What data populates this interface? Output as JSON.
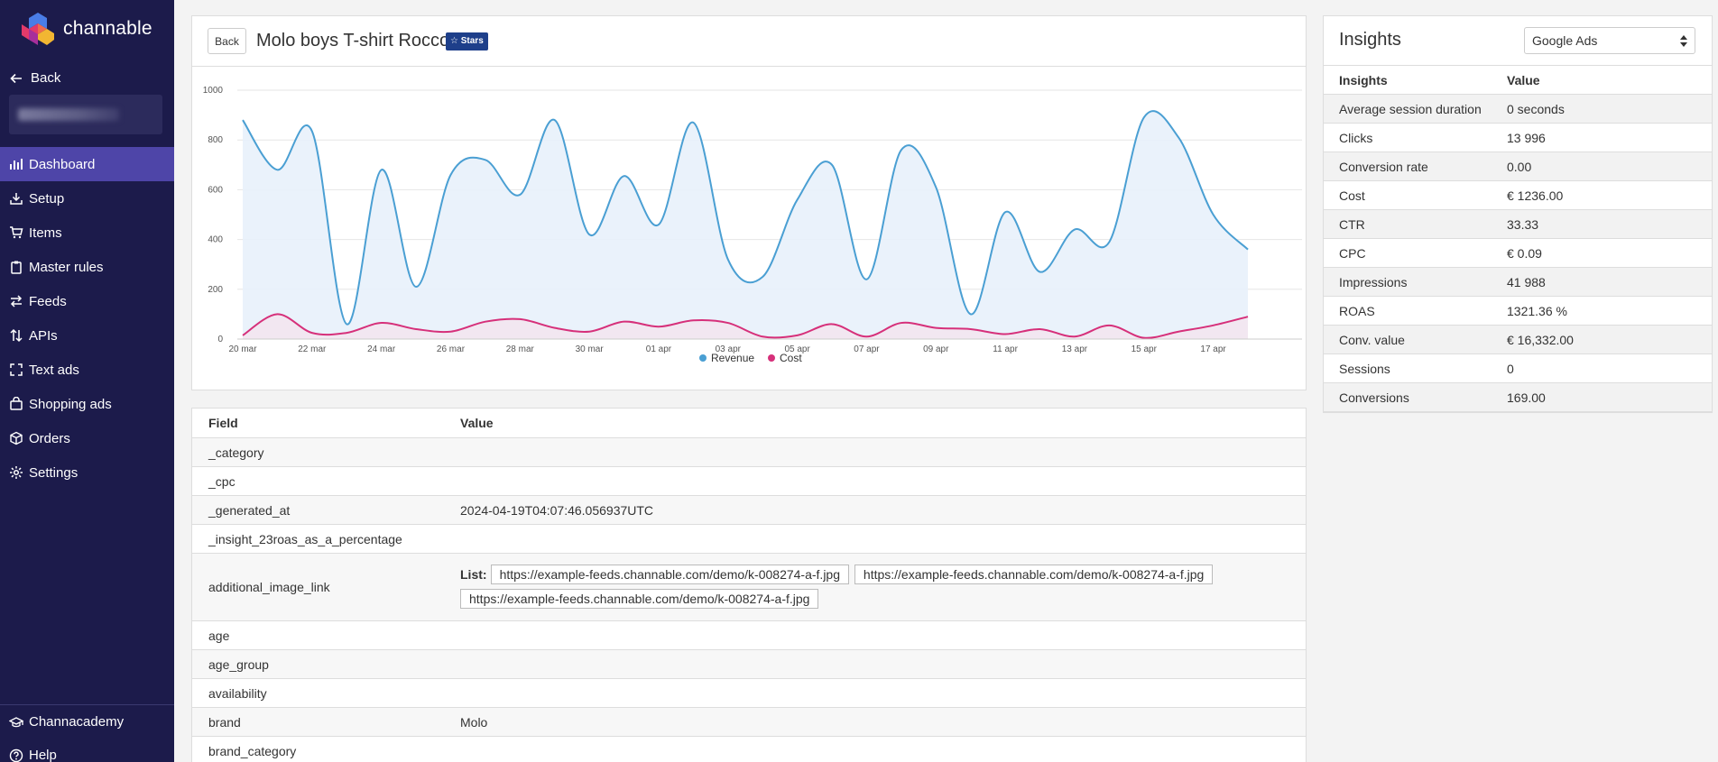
{
  "app": {
    "brand": "channable"
  },
  "sidebar": {
    "back_label": "Back",
    "items": [
      {
        "label": "Dashboard",
        "icon": "bar-chart-icon",
        "active": true
      },
      {
        "label": "Setup",
        "icon": "download-icon"
      },
      {
        "label": "Items",
        "icon": "cart-icon"
      },
      {
        "label": "Master rules",
        "icon": "clipboard-icon"
      },
      {
        "label": "Feeds",
        "icon": "exchange-icon"
      },
      {
        "label": "APIs",
        "icon": "sort-icon"
      },
      {
        "label": "Text ads",
        "icon": "expand-icon"
      },
      {
        "label": "Shopping ads",
        "icon": "shopping-bag-icon"
      },
      {
        "label": "Orders",
        "icon": "box-icon"
      },
      {
        "label": "Settings",
        "icon": "gear-icon"
      }
    ],
    "bottom": [
      {
        "label": "Channacademy",
        "icon": "graduation-cap-icon"
      },
      {
        "label": "Help",
        "icon": "question-icon"
      }
    ]
  },
  "item": {
    "back_button": "Back",
    "title": "Molo boys T-shirt Rocco",
    "badge": "☆ Stars"
  },
  "chart_data": {
    "type": "line",
    "title": "",
    "xlabel": "",
    "ylabel": "",
    "ylim": [
      0,
      1000
    ],
    "yticks": [
      0,
      200,
      400,
      600,
      800,
      1000
    ],
    "x": [
      "20 mar",
      "21 mar",
      "22 mar",
      "23 mar",
      "24 mar",
      "25 mar",
      "26 mar",
      "27 mar",
      "28 mar",
      "29 mar",
      "30 mar",
      "31 mar",
      "01 apr",
      "02 apr",
      "03 apr",
      "04 apr",
      "05 apr",
      "06 apr",
      "07 apr",
      "08 apr",
      "09 apr",
      "10 apr",
      "11 apr",
      "12 apr",
      "13 apr",
      "14 apr",
      "15 apr",
      "16 apr",
      "17 apr",
      "18 apr"
    ],
    "xtick_labels": [
      "20 mar",
      "22 mar",
      "24 mar",
      "26 mar",
      "28 mar",
      "30 mar",
      "01 apr",
      "03 apr",
      "05 apr",
      "07 apr",
      "09 apr",
      "11 apr",
      "13 apr",
      "15 apr",
      "17 apr"
    ],
    "series": [
      {
        "name": "Revenue",
        "color": "#4a9fd3",
        "fill": "#e8f1fb",
        "values": [
          880,
          680,
          835,
          60,
          680,
          210,
          660,
          720,
          580,
          880,
          420,
          655,
          460,
          870,
          320,
          250,
          560,
          700,
          240,
          760,
          610,
          100,
          510,
          270,
          440,
          390,
          890,
          810,
          500,
          360
        ]
      },
      {
        "name": "Cost",
        "color": "#d6307a",
        "fill": "#f3e6ef",
        "values": [
          15,
          100,
          25,
          25,
          65,
          40,
          30,
          70,
          80,
          45,
          30,
          70,
          50,
          75,
          65,
          10,
          15,
          60,
          10,
          65,
          45,
          40,
          20,
          40,
          10,
          55,
          5,
          30,
          55,
          90
        ]
      }
    ],
    "legend": "bottom-center"
  },
  "fields": {
    "headers": {
      "field": "Field",
      "value": "Value"
    },
    "list_label": "List:",
    "rows": [
      {
        "field": "_category",
        "value": ""
      },
      {
        "field": "_cpc",
        "value": ""
      },
      {
        "field": "_generated_at",
        "value": "2024-04-19T04:07:46.056937UTC"
      },
      {
        "field": "_insight_23roas_as_a_percentage",
        "value": ""
      },
      {
        "field": "additional_image_link",
        "list": [
          "https://example-feeds.channable.com/demo/k-008274-a-f.jpg",
          "https://example-feeds.channable.com/demo/k-008274-a-f.jpg",
          "https://example-feeds.channable.com/demo/k-008274-a-f.jpg"
        ]
      },
      {
        "field": "age",
        "value": ""
      },
      {
        "field": "age_group",
        "value": ""
      },
      {
        "field": "availability",
        "value": ""
      },
      {
        "field": "brand",
        "value": "Molo"
      },
      {
        "field": "brand_category",
        "value": ""
      }
    ]
  },
  "insights": {
    "title": "Insights",
    "select_value": "Google Ads",
    "headers": {
      "name": "Insights",
      "value": "Value"
    },
    "rows": [
      {
        "name": "Average session duration",
        "value": "0 seconds"
      },
      {
        "name": "Clicks",
        "value": "13 996"
      },
      {
        "name": "Conversion rate",
        "value": "0.00"
      },
      {
        "name": "Cost",
        "value": "€ 1236.00"
      },
      {
        "name": "CTR",
        "value": "33.33"
      },
      {
        "name": "CPC",
        "value": "€ 0.09"
      },
      {
        "name": "Impressions",
        "value": "41 988"
      },
      {
        "name": "ROAS",
        "value": "1321.36 %"
      },
      {
        "name": "Conv. value",
        "value": "€ 16,332.00"
      },
      {
        "name": "Sessions",
        "value": "0"
      },
      {
        "name": "Conversions",
        "value": "169.00"
      }
    ]
  }
}
